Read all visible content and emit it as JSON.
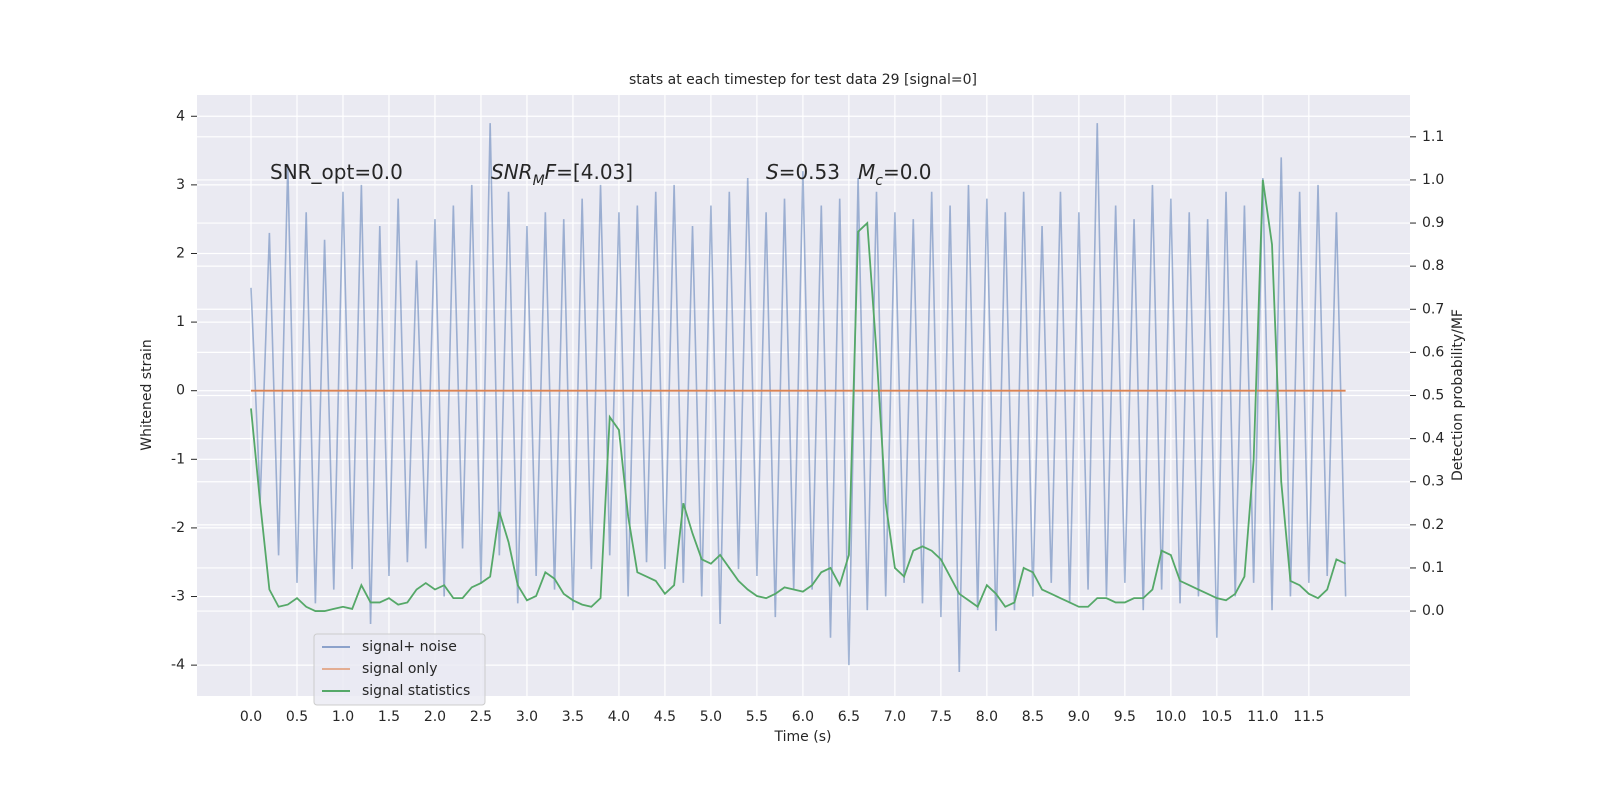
{
  "chart_data": {
    "type": "line",
    "title": "stats at each timestep for test data 29 [signal=0]",
    "x_label": "Time (s)",
    "y_label": "Whitened strain",
    "y2_label": "Detection probability/MF",
    "grid": true,
    "legend_loc": "lower left",
    "xlim": [
      -0.587,
      12.6
    ],
    "ylim": [
      -4.45,
      4.31
    ],
    "y2lim": [
      -0.197,
      1.197
    ],
    "xticks": [
      {
        "value": 0,
        "label": "0.0"
      },
      0.5,
      {
        "value": 1,
        "label": "1.0"
      },
      1.5,
      {
        "value": 2,
        "label": "2.0"
      },
      2.5,
      {
        "value": 3,
        "label": "3.0"
      },
      3.5,
      {
        "value": 4,
        "label": "4.0"
      },
      4.5,
      {
        "value": 5,
        "label": "5.0"
      },
      5.5,
      {
        "value": 6,
        "label": "6.0"
      },
      6.5,
      {
        "value": 7,
        "label": "7.0"
      },
      7.5,
      {
        "value": 8,
        "label": "8.0"
      },
      8.5,
      {
        "value": 9,
        "label": "9.0"
      },
      9.5,
      {
        "value": 10,
        "label": "10.0"
      },
      10.5,
      {
        "value": 11,
        "label": "11.0"
      },
      11.5
    ],
    "yticks": [
      -4,
      -3,
      -2,
      -1,
      0,
      1,
      2,
      3,
      4
    ],
    "y2ticks": [
      {
        "value": 0,
        "label": "0.0"
      },
      0.1,
      0.2,
      0.3,
      0.4,
      0.5,
      0.6,
      0.7,
      0.8,
      0.9,
      {
        "value": 1,
        "label": "1.0"
      },
      1.1
    ],
    "annotations": [
      [
        {
          "t": "SNR_opt=0.0",
          "style": "normal"
        }
      ],
      [
        {
          "t": "SNR",
          "style": "it"
        },
        {
          "t": "M",
          "style": "sub"
        },
        {
          "t": "F",
          "style": "it"
        },
        {
          "t": "=[4.03]",
          "style": "normal"
        }
      ],
      [
        {
          "t": "S",
          "style": "it"
        },
        {
          "t": "=0.53",
          "style": "normal"
        }
      ],
      [
        {
          "t": "M",
          "style": "it"
        },
        {
          "t": "c",
          "style": "sub"
        },
        {
          "t": "=0.0",
          "style": "normal"
        }
      ]
    ],
    "x": [
      0,
      0.1,
      0.2,
      0.3,
      0.4,
      0.5,
      0.6,
      0.7,
      0.8,
      0.9,
      1,
      1.1,
      1.2,
      1.3,
      1.4,
      1.5,
      1.6,
      1.7,
      1.8,
      1.9,
      2,
      2.1,
      2.2,
      2.3,
      2.4,
      2.5,
      2.6,
      2.7,
      2.8,
      2.9,
      3,
      3.1,
      3.2,
      3.3,
      3.4,
      3.5,
      3.6,
      3.7,
      3.8,
      3.9,
      4,
      4.1,
      4.2,
      4.3,
      4.4,
      4.5,
      4.6,
      4.7,
      4.8,
      4.9,
      5,
      5.1,
      5.2,
      5.3,
      5.4,
      5.5,
      5.6,
      5.7,
      5.8,
      5.9,
      6,
      6.1,
      6.2,
      6.3,
      6.4,
      6.5,
      6.6,
      6.7,
      6.8,
      6.9,
      7,
      7.1,
      7.2,
      7.3,
      7.4,
      7.5,
      7.6,
      7.7,
      7.8,
      7.9,
      8,
      8.1,
      8.2,
      8.3,
      8.4,
      8.5,
      8.6,
      8.7,
      8.8,
      8.9,
      9,
      9.1,
      9.2,
      9.3,
      9.4,
      9.5,
      9.6,
      9.7,
      9.8,
      9.9,
      10,
      10.1,
      10.2,
      10.3,
      10.4,
      10.5,
      10.6,
      10.7,
      10.8,
      10.9,
      11,
      11.1,
      11.2,
      11.3,
      11.4,
      11.5,
      11.6,
      11.7,
      11.8,
      11.9
    ],
    "series": [
      {
        "name": "signal+ noise",
        "color": "#4c72b0",
        "axis": "y",
        "values": [
          1.5,
          -1.6,
          2.3,
          -2.4,
          3.3,
          -2.8,
          2.6,
          -3.1,
          2.2,
          -2.9,
          2.9,
          -2.6,
          3.0,
          -3.4,
          2.4,
          -2.7,
          2.8,
          -2.5,
          1.9,
          -2.3,
          2.5,
          -3.0,
          2.7,
          -2.3,
          3.0,
          -2.8,
          3.9,
          -2.4,
          2.9,
          -3.1,
          2.4,
          -2.7,
          2.6,
          -2.9,
          2.5,
          -3.2,
          2.8,
          -2.6,
          3.0,
          -2.4,
          2.6,
          -3.0,
          2.7,
          -2.5,
          2.9,
          -2.6,
          3.0,
          -2.8,
          2.4,
          -3.0,
          2.7,
          -3.4,
          2.9,
          -2.6,
          3.1,
          -2.7,
          2.6,
          -3.3,
          2.8,
          -2.9,
          3.2,
          -2.9,
          2.7,
          -3.6,
          2.8,
          -4.0,
          3.1,
          -3.2,
          2.9,
          -3.0,
          2.6,
          -2.8,
          2.5,
          -3.1,
          2.9,
          -3.3,
          2.7,
          -4.1,
          3.0,
          -3.2,
          2.8,
          -3.5,
          2.6,
          -3.2,
          2.9,
          -3.0,
          2.4,
          -2.8,
          2.9,
          -3.1,
          2.6,
          -2.9,
          3.9,
          -3.0,
          2.7,
          -2.8,
          2.5,
          -3.2,
          3.0,
          -2.9,
          2.8,
          -3.1,
          2.6,
          -3.0,
          2.5,
          -3.6,
          2.9,
          -3.0,
          2.7,
          -2.8,
          3.1,
          -3.2,
          3.4,
          -3.0,
          2.9,
          -2.8,
          3.0,
          -2.7,
          2.6,
          -3.0
        ]
      },
      {
        "name": "signal only",
        "color": "#dd8452",
        "axis": "y",
        "values": [
          0,
          0,
          0,
          0,
          0,
          0,
          0,
          0,
          0,
          0,
          0,
          0,
          0,
          0,
          0,
          0,
          0,
          0,
          0,
          0,
          0,
          0,
          0,
          0,
          0,
          0,
          0,
          0,
          0,
          0,
          0,
          0,
          0,
          0,
          0,
          0,
          0,
          0,
          0,
          0,
          0,
          0,
          0,
          0,
          0,
          0,
          0,
          0,
          0,
          0,
          0,
          0,
          0,
          0,
          0,
          0,
          0,
          0,
          0,
          0,
          0,
          0,
          0,
          0,
          0,
          0,
          0,
          0,
          0,
          0,
          0,
          0,
          0,
          0,
          0,
          0,
          0,
          0,
          0,
          0,
          0,
          0,
          0,
          0,
          0,
          0,
          0,
          0,
          0,
          0,
          0,
          0,
          0,
          0,
          0,
          0,
          0,
          0,
          0,
          0,
          0,
          0,
          0,
          0,
          0,
          0,
          0,
          0,
          0,
          0,
          0,
          0,
          0,
          0,
          0,
          0,
          0,
          0,
          0,
          0
        ]
      },
      {
        "name": "signal statistics",
        "color": "#55a868",
        "axis": "y2",
        "values": [
          0.47,
          0.25,
          0.05,
          0.01,
          0.015,
          0.03,
          0.01,
          0,
          0,
          0.005,
          0.01,
          0.005,
          0.06,
          0.02,
          0.02,
          0.03,
          0.015,
          0.02,
          0.05,
          0.065,
          0.05,
          0.06,
          0.03,
          0.03,
          0.055,
          0.065,
          0.08,
          0.23,
          0.16,
          0.06,
          0.025,
          0.035,
          0.09,
          0.075,
          0.04,
          0.025,
          0.015,
          0.01,
          0.03,
          0.45,
          0.42,
          0.22,
          0.09,
          0.08,
          0.07,
          0.04,
          0.06,
          0.25,
          0.18,
          0.12,
          0.11,
          0.13,
          0.1,
          0.07,
          0.05,
          0.035,
          0.03,
          0.04,
          0.055,
          0.05,
          0.045,
          0.06,
          0.09,
          0.1,
          0.06,
          0.13,
          0.88,
          0.9,
          0.6,
          0.25,
          0.1,
          0.08,
          0.14,
          0.15,
          0.14,
          0.12,
          0.08,
          0.04,
          0.025,
          0.01,
          0.06,
          0.04,
          0.01,
          0.02,
          0.1,
          0.09,
          0.05,
          0.04,
          0.03,
          0.02,
          0.01,
          0.01,
          0.03,
          0.03,
          0.02,
          0.02,
          0.03,
          0.03,
          0.05,
          0.14,
          0.13,
          0.07,
          0.06,
          0.05,
          0.04,
          0.03,
          0.025,
          0.04,
          0.08,
          0.35,
          1.0,
          0.85,
          0.3,
          0.07,
          0.06,
          0.04,
          0.03,
          0.05,
          0.12,
          0.11
        ]
      }
    ]
  }
}
